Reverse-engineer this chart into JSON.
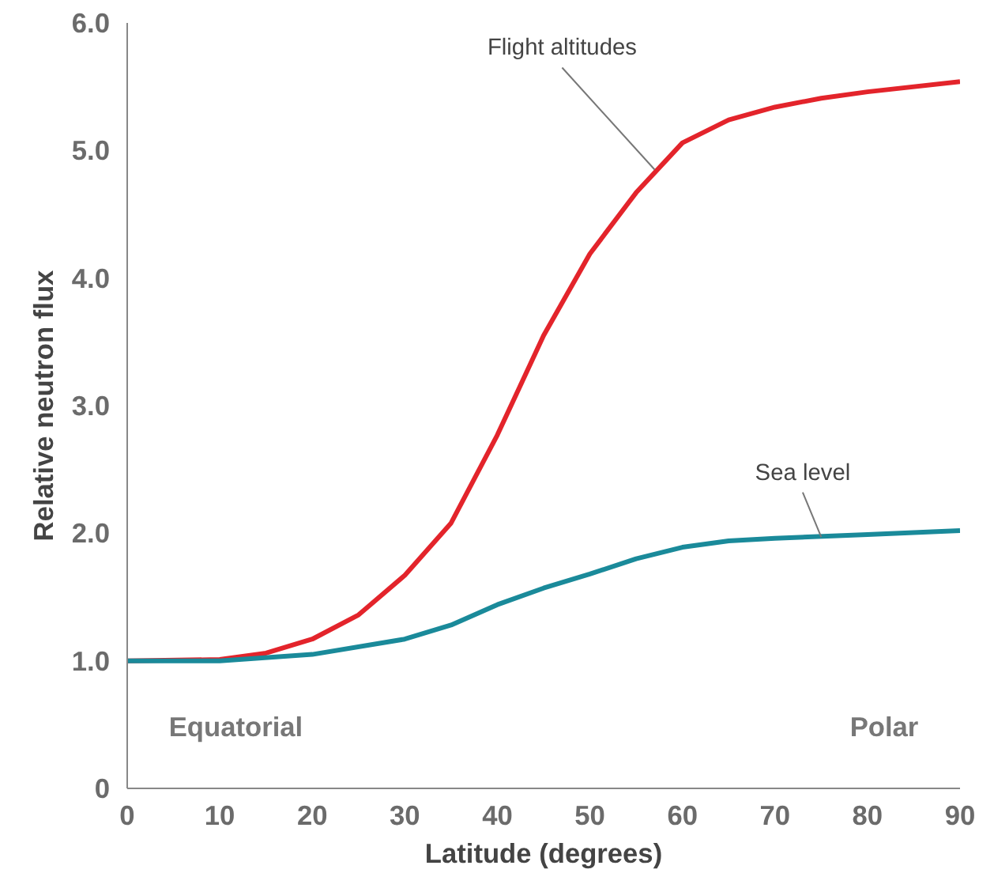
{
  "chart_data": {
    "type": "line",
    "xlabel": "Latitude (degrees)",
    "ylabel": "Relative neutron flux",
    "xlim": [
      0,
      90
    ],
    "ylim": [
      0,
      6
    ],
    "xticks": [
      0,
      10,
      20,
      30,
      40,
      50,
      60,
      70,
      80,
      90
    ],
    "yticks": [
      {
        "value": 0,
        "label": "0"
      },
      {
        "value": 1,
        "label": "1.0"
      },
      {
        "value": 2,
        "label": "2.0"
      },
      {
        "value": 3,
        "label": "3.0"
      },
      {
        "value": 4,
        "label": "4.0"
      },
      {
        "value": 5,
        "label": "5.0"
      },
      {
        "value": 6,
        "label": "6.0"
      }
    ],
    "grid": false,
    "marker": "none",
    "line_style": "solid",
    "series": [
      {
        "color": "#e3242b",
        "x": [
          0,
          10,
          15,
          20,
          25,
          30,
          35,
          40,
          45,
          50,
          55,
          60,
          65,
          70,
          75,
          80,
          90
        ],
        "values": [
          1.0,
          1.01,
          1.06,
          1.17,
          1.36,
          1.67,
          2.08,
          2.77,
          3.55,
          4.19,
          4.67,
          5.06,
          5.24,
          5.34,
          5.41,
          5.46,
          5.54
        ]
      },
      {
        "color": "#1a8a9a",
        "x": [
          0,
          10,
          20,
          30,
          35,
          40,
          45,
          50,
          55,
          60,
          65,
          70,
          80,
          90
        ],
        "values": [
          1.0,
          1.0,
          1.05,
          1.17,
          1.28,
          1.44,
          1.57,
          1.68,
          1.8,
          1.89,
          1.94,
          1.96,
          1.99,
          2.02
        ]
      }
    ],
    "annotations": [
      {
        "text": "Flight altitudes",
        "x": 57,
        "y": 4.85
      },
      {
        "text": "Sea level",
        "x": 75,
        "y": 1.97
      },
      "Equatorial",
      "Polar"
    ]
  }
}
